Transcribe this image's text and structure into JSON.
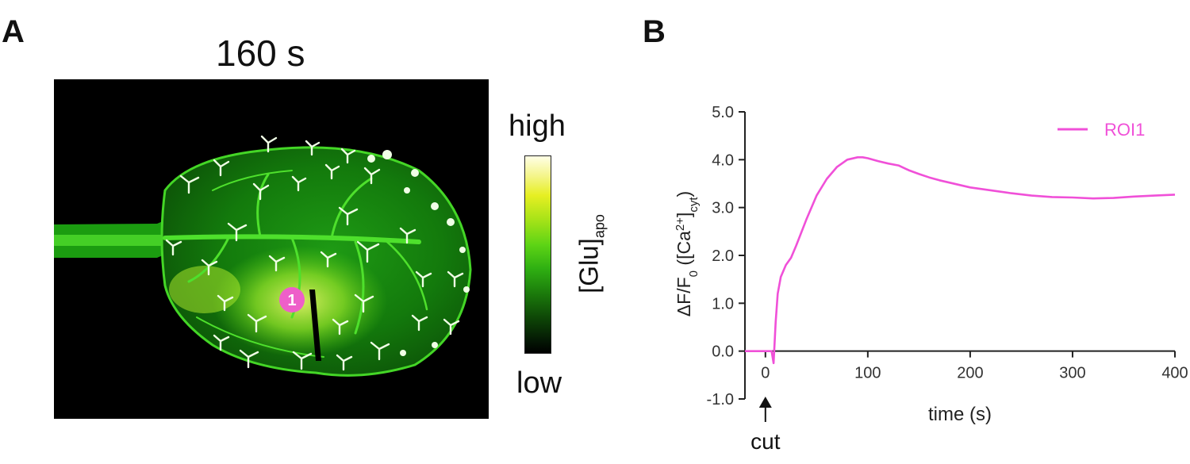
{
  "panel_a": {
    "label": "A",
    "timepoint": "160 s",
    "roi_marker": "1",
    "colorbar": {
      "high_label": "high",
      "low_label": "low",
      "title": "[Glu]",
      "title_subscript": "apo"
    }
  },
  "panel_b": {
    "label": "B"
  },
  "colors": {
    "trace": "#f050d8",
    "roi_marker": "#ee5fc9",
    "leaf_green": "#2fd41a",
    "axis": "#222222"
  },
  "chart_data": {
    "type": "line",
    "xlabel": "time (s)",
    "ylabel": {
      "parts": [
        {
          "text": "ΔF/F",
          "shift": ""
        },
        {
          "text": "0",
          "shift": "sub"
        },
        {
          "text": " ([Ca",
          "shift": ""
        },
        {
          "text": "2+",
          "shift": "super"
        },
        {
          "text": "]",
          "shift": ""
        },
        {
          "text": "cyt",
          "shift": "sub"
        },
        {
          "text": ")",
          "shift": ""
        }
      ]
    },
    "xlim": [
      -20,
      400
    ],
    "ylim": [
      -1.0,
      5.0
    ],
    "xticks": [
      0,
      100,
      200,
      300,
      400
    ],
    "yticks": [
      -1.0,
      0.0,
      1.0,
      2.0,
      3.0,
      4.0,
      5.0
    ],
    "ytick_labels": [
      "-1.0",
      "0.0",
      "1.0",
      "2.0",
      "3.0",
      "4.0",
      "5.0"
    ],
    "legend": {
      "entry": "ROI1",
      "position": "top-right"
    },
    "annotation": {
      "text": "cut",
      "x": 0
    },
    "series": [
      {
        "name": "ROI1",
        "x": [
          -20,
          0,
          6,
          8,
          10,
          12,
          15,
          20,
          25,
          30,
          40,
          50,
          60,
          70,
          80,
          90,
          95,
          100,
          110,
          120,
          130,
          140,
          150,
          160,
          170,
          180,
          200,
          220,
          240,
          260,
          280,
          300,
          320,
          340,
          360,
          380,
          400
        ],
        "y": [
          0.0,
          0.0,
          0.0,
          -0.25,
          0.6,
          1.2,
          1.55,
          1.8,
          1.95,
          2.2,
          2.75,
          3.25,
          3.6,
          3.85,
          4.0,
          4.05,
          4.05,
          4.03,
          3.97,
          3.92,
          3.88,
          3.78,
          3.7,
          3.63,
          3.57,
          3.52,
          3.42,
          3.36,
          3.3,
          3.25,
          3.22,
          3.21,
          3.19,
          3.2,
          3.23,
          3.25,
          3.27
        ]
      }
    ]
  }
}
